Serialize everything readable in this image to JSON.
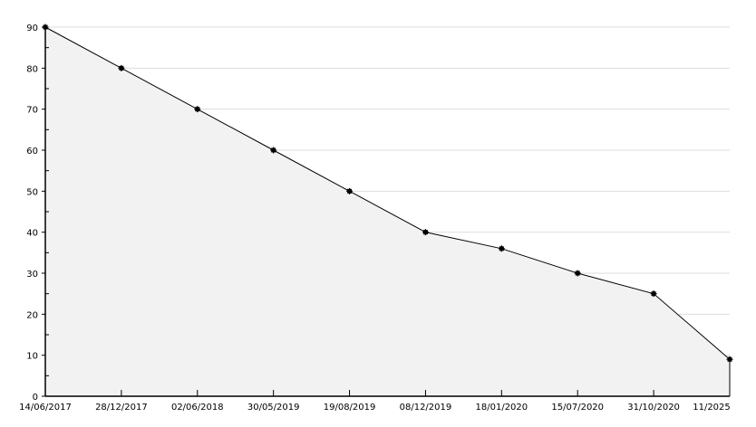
{
  "chart_data": {
    "type": "area",
    "title": "",
    "xlabel": "",
    "ylabel": "",
    "categories": [
      "14/06/2017",
      "28/12/2017",
      "02/06/2018",
      "30/05/2019",
      "19/08/2019",
      "08/12/2019",
      "18/01/2020",
      "15/07/2020",
      "31/10/2020",
      "11/2025"
    ],
    "series": [
      {
        "values": [
          90,
          80,
          70,
          60,
          50,
          40,
          36,
          30,
          25,
          9
        ]
      }
    ],
    "ylim": [
      0,
      90
    ],
    "yticks": [
      0,
      10,
      20,
      30,
      40,
      50,
      60,
      70,
      80,
      90
    ],
    "grid": true,
    "legend": "none",
    "colors": {
      "line": "#000000",
      "fill": "#f2f2f2",
      "grid": "#dddddd",
      "marker": "#000000"
    }
  }
}
